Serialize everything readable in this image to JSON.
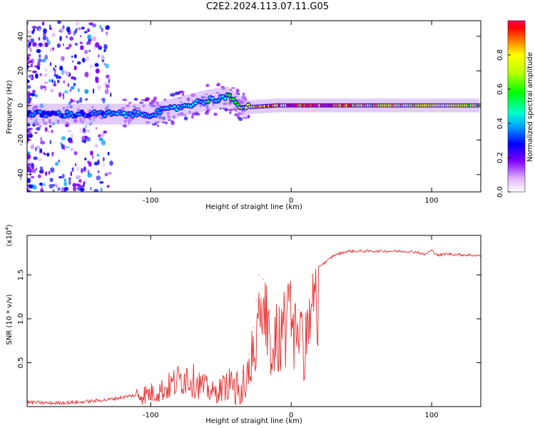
{
  "title": "C2E2.2024.113.07.11.G05",
  "colors": {
    "snr_line": "#e83030",
    "background_fill": "#c8a0ff",
    "ridge_inner": "#ff2a2a",
    "axis": "#000000"
  },
  "chart_data": [
    {
      "type": "heatmap",
      "title": "",
      "xlabel": "Height of straight line (km)",
      "ylabel": "Frequency (Hz)",
      "xlim": [
        -188,
        135
      ],
      "ylim": [
        -50,
        49
      ],
      "xticks": [
        -100,
        0,
        100
      ],
      "xtick_labels": [
        "-100",
        "0",
        "100"
      ],
      "yticks": [
        -40,
        -20,
        0,
        20,
        40
      ],
      "ytick_labels": [
        "-40",
        "-20",
        "0",
        "20",
        "40"
      ],
      "ridge": {
        "height_km": [
          -188,
          -150,
          -120,
          -100,
          -80,
          -60,
          -45,
          -35,
          -30,
          -10,
          0,
          20,
          60,
          100,
          135
        ],
        "frequency_hz": [
          -5,
          -5,
          -5,
          -5,
          -1,
          3,
          5,
          -1,
          -1,
          0,
          0,
          0,
          0,
          0,
          0
        ],
        "amplitude": [
          0.3,
          0.3,
          0.35,
          0.35,
          0.4,
          0.4,
          0.45,
          0.6,
          0.7,
          0.85,
          0.95,
          0.95,
          0.75,
          0.7,
          0.7
        ]
      },
      "colorbar": {
        "label": "Normalized spectral amplitude",
        "ticks": [
          0.0,
          0.2,
          0.4,
          0.6,
          0.8
        ],
        "tick_labels": [
          "0.0",
          "0.2",
          "0.4",
          "0.6",
          "0.8"
        ],
        "range": [
          0,
          1
        ]
      }
    },
    {
      "type": "line",
      "title": "",
      "xlabel": "Height of straight line (km)",
      "ylabel": "SNR (10 * v/v)",
      "scale_label": "(x10",
      "scale_exponent": "4",
      "scale_label_close": ")",
      "xlim": [
        -188,
        135
      ],
      "ylim": [
        0,
        1.95
      ],
      "xticks": [
        -100,
        0,
        100
      ],
      "xtick_labels": [
        "-100",
        "0",
        "100"
      ],
      "yticks": [
        0.5,
        1.0,
        1.5
      ],
      "ytick_labels": [
        "0.5",
        "1.0",
        "1.5"
      ],
      "series": [
        {
          "name": "SNR",
          "x": [
            -188,
            -170,
            -150,
            -130,
            -115,
            -100,
            -90,
            -80,
            -75,
            -70,
            -65,
            -55,
            -45,
            -35,
            -30,
            -27,
            -25,
            -23,
            -20,
            -15,
            -10,
            -5,
            0,
            5,
            10,
            15,
            20,
            25,
            30,
            40,
            60,
            80,
            90,
            95,
            100,
            105,
            110,
            120,
            135
          ],
          "y": [
            0.05,
            0.04,
            0.05,
            0.08,
            0.12,
            0.15,
            0.2,
            0.3,
            0.35,
            0.3,
            0.25,
            0.15,
            0.25,
            0.4,
            0.6,
            0.9,
            1.2,
            1.5,
            1.45,
            1.1,
            1.05,
            1.2,
            1.35,
            1.1,
            1.0,
            1.5,
            1.6,
            1.65,
            1.72,
            1.77,
            1.77,
            1.77,
            1.76,
            1.73,
            1.78,
            1.72,
            1.74,
            1.73,
            1.72
          ]
        }
      ]
    }
  ]
}
